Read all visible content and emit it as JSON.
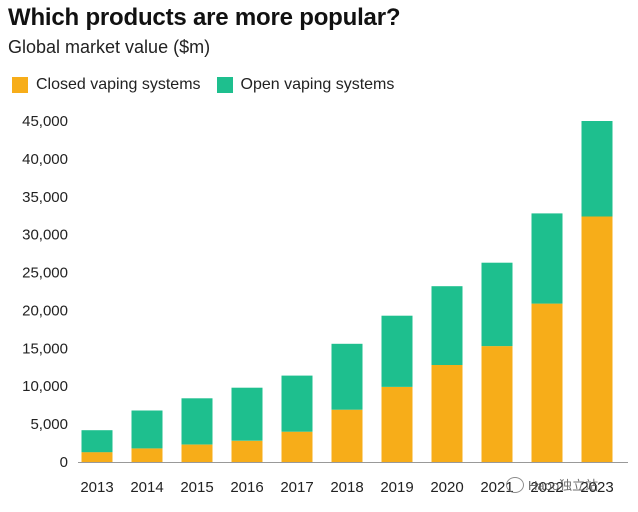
{
  "colors": {
    "closed": "#F7AD19",
    "open": "#1EBF8E",
    "text": "#222222"
  },
  "header": {
    "title": "Which products are more popular?",
    "subtitle": "Global market value ($m)"
  },
  "legend": {
    "closed_label": "Closed vaping systems",
    "open_label": "Open vaping systems",
    "position": "top-left"
  },
  "watermark": {
    "text": "Haoo独立站",
    "icon": "wechat-icon"
  },
  "chart_data": {
    "type": "bar",
    "stacked": true,
    "title": "Which products are more popular?",
    "subtitle": "Global market value ($m)",
    "xlabel": "",
    "ylabel": "",
    "categories": [
      "2013",
      "2014",
      "2015",
      "2016",
      "2017",
      "2018",
      "2019",
      "2020",
      "2021",
      "2022",
      "2023"
    ],
    "series": [
      {
        "name": "Closed vaping systems",
        "values": [
          1300,
          1800,
          2300,
          2800,
          4000,
          6900,
          9900,
          12800,
          15300,
          20900,
          32400
        ]
      },
      {
        "name": "Open vaping systems",
        "values": [
          2900,
          5000,
          6100,
          7000,
          7400,
          8700,
          9400,
          10400,
          11000,
          11900,
          12600
        ]
      }
    ],
    "ylim": [
      0,
      45000
    ],
    "yticks": [
      0,
      5000,
      10000,
      15000,
      20000,
      25000,
      30000,
      35000,
      40000,
      45000
    ],
    "ytick_labels": [
      "0",
      "5,000",
      "10,000",
      "15,000",
      "20,000",
      "25,000",
      "30,000",
      "35,000",
      "40,000",
      "45,000"
    ],
    "grid": false,
    "legend_position": "top-left"
  }
}
